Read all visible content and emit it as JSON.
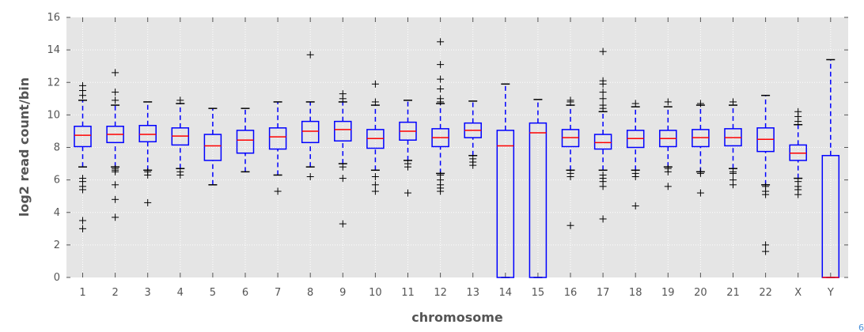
{
  "chart_data": {
    "type": "box",
    "title": "",
    "xlabel": "chromosome",
    "ylabel": "log2 read count/bin",
    "ylim": [
      0,
      16
    ],
    "yticks": [
      0,
      2,
      4,
      6,
      8,
      10,
      12,
      14,
      16
    ],
    "grid": true,
    "legend": "none",
    "colors": {
      "plot_background": "#e5e5e5",
      "grid": "#ffffff",
      "box": "#0000ff",
      "median": "#ff0000",
      "whisker": "#0000ff",
      "flier": "#000000",
      "tick_text": "#555555"
    },
    "categories": [
      "1",
      "2",
      "3",
      "4",
      "5",
      "6",
      "7",
      "8",
      "9",
      "10",
      "11",
      "12",
      "13",
      "14",
      "15",
      "16",
      "17",
      "18",
      "19",
      "20",
      "21",
      "22",
      "X",
      "Y"
    ],
    "boxes": [
      {
        "category": "1",
        "whislo": 6.8,
        "q1": 8.05,
        "med": 8.75,
        "q3": 9.3,
        "whishi": 10.9,
        "fliers": [
          3.0,
          3.5,
          5.4,
          5.6,
          5.9,
          6.1,
          11.2,
          11.5,
          11.8
        ]
      },
      {
        "category": "2",
        "whislo": 6.8,
        "q1": 8.3,
        "med": 8.8,
        "q3": 9.3,
        "whishi": 10.6,
        "fliers": [
          3.7,
          4.8,
          5.7,
          6.5,
          6.6,
          6.7,
          10.9,
          11.4,
          12.6
        ]
      },
      {
        "category": "3",
        "whislo": 6.6,
        "q1": 8.35,
        "med": 8.8,
        "q3": 9.35,
        "whishi": 10.8,
        "fliers": [
          4.6,
          6.3,
          6.5
        ]
      },
      {
        "category": "4",
        "whislo": 6.7,
        "q1": 8.15,
        "med": 8.7,
        "q3": 9.2,
        "whishi": 10.7,
        "fliers": [
          6.3,
          6.5,
          10.9
        ]
      },
      {
        "category": "5",
        "whislo": 5.7,
        "q1": 7.2,
        "med": 8.1,
        "q3": 8.8,
        "whishi": 10.4,
        "fliers": []
      },
      {
        "category": "6",
        "whislo": 6.5,
        "q1": 7.65,
        "med": 8.45,
        "q3": 9.05,
        "whishi": 10.4,
        "fliers": []
      },
      {
        "category": "7",
        "whislo": 6.3,
        "q1": 7.9,
        "med": 8.65,
        "q3": 9.2,
        "whishi": 10.8,
        "fliers": [
          5.3
        ]
      },
      {
        "category": "8",
        "whislo": 6.8,
        "q1": 8.3,
        "med": 9.0,
        "q3": 9.6,
        "whishi": 10.8,
        "fliers": [
          6.2,
          13.7
        ]
      },
      {
        "category": "9",
        "whislo": 7.0,
        "q1": 8.4,
        "med": 9.1,
        "q3": 9.6,
        "whishi": 10.8,
        "fliers": [
          3.3,
          6.1,
          6.8,
          11.0,
          11.3
        ]
      },
      {
        "category": "10",
        "whislo": 6.6,
        "q1": 7.95,
        "med": 8.55,
        "q3": 9.1,
        "whishi": 10.6,
        "fliers": [
          5.3,
          5.7,
          6.2,
          10.8,
          11.9
        ]
      },
      {
        "category": "11",
        "whislo": 7.2,
        "q1": 8.45,
        "med": 9.0,
        "q3": 9.55,
        "whishi": 10.9,
        "fliers": [
          5.2,
          6.8,
          7.0
        ]
      },
      {
        "category": "12",
        "whislo": 6.4,
        "q1": 8.05,
        "med": 8.6,
        "q3": 9.15,
        "whishi": 10.7,
        "fliers": [
          5.3,
          5.5,
          5.7,
          6.0,
          6.3,
          10.8,
          11.0,
          11.6,
          12.2,
          13.1,
          14.5
        ]
      },
      {
        "category": "13",
        "whislo": 7.5,
        "q1": 8.6,
        "med": 9.05,
        "q3": 9.5,
        "whishi": 10.85,
        "fliers": [
          6.9,
          7.1,
          7.3
        ]
      },
      {
        "category": "14",
        "whislo": 0.0,
        "q1": 0.0,
        "med": 8.1,
        "q3": 9.05,
        "whishi": 11.9,
        "fliers": []
      },
      {
        "category": "15",
        "whislo": 0.0,
        "q1": 0.0,
        "med": 8.9,
        "q3": 9.5,
        "whishi": 10.95,
        "fliers": []
      },
      {
        "category": "16",
        "whislo": 6.6,
        "q1": 8.05,
        "med": 8.6,
        "q3": 9.1,
        "whishi": 10.6,
        "fliers": [
          3.2,
          6.2,
          6.4,
          10.8,
          10.9
        ]
      },
      {
        "category": "17",
        "whislo": 6.6,
        "q1": 7.9,
        "med": 8.3,
        "q3": 8.8,
        "whishi": 10.2,
        "fliers": [
          3.6,
          5.6,
          5.9,
          6.1,
          6.3,
          10.4,
          10.6,
          11.0,
          11.4,
          11.9,
          12.1,
          13.9
        ]
      },
      {
        "category": "18",
        "whislo": 6.6,
        "q1": 8.0,
        "med": 8.55,
        "q3": 9.05,
        "whishi": 10.5,
        "fliers": [
          4.4,
          6.2,
          6.4,
          10.7
        ]
      },
      {
        "category": "19",
        "whislo": 6.8,
        "q1": 8.05,
        "med": 8.55,
        "q3": 9.05,
        "whishi": 10.5,
        "fliers": [
          5.6,
          6.5,
          6.7,
          10.8
        ]
      },
      {
        "category": "20",
        "whislo": 6.5,
        "q1": 8.05,
        "med": 8.6,
        "q3": 9.1,
        "whishi": 10.6,
        "fliers": [
          5.2,
          6.4,
          6.5,
          10.7
        ]
      },
      {
        "category": "21",
        "whislo": 6.7,
        "q1": 8.1,
        "med": 8.6,
        "q3": 9.15,
        "whishi": 10.6,
        "fliers": [
          5.7,
          6.0,
          6.4,
          6.5,
          10.8
        ]
      },
      {
        "category": "22",
        "whislo": 5.7,
        "q1": 7.75,
        "med": 8.5,
        "q3": 9.2,
        "whishi": 11.2,
        "fliers": [
          1.6,
          2.0,
          5.1,
          5.3,
          5.6
        ]
      },
      {
        "category": "X",
        "whislo": 6.1,
        "q1": 7.2,
        "med": 7.65,
        "q3": 8.15,
        "whishi": 9.4,
        "fliers": [
          5.1,
          5.4,
          5.6,
          5.9,
          9.6,
          9.9,
          10.2
        ]
      },
      {
        "category": "Y",
        "whislo": 0.0,
        "q1": 0.0,
        "med": 0.0,
        "q3": 7.5,
        "whishi": 13.4,
        "fliers": []
      }
    ]
  }
}
